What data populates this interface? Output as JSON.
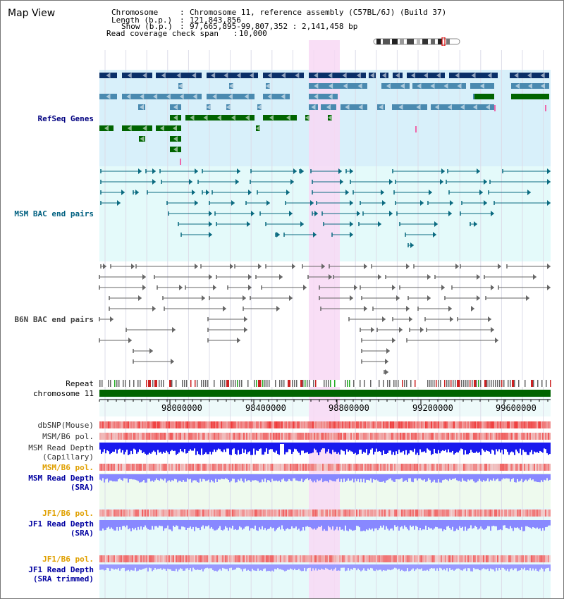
{
  "page": {
    "title": "Map View"
  },
  "info": {
    "chromosome_key": "Chromosome",
    "chromosome_value": "Chromosome 11, reference assembly (C57BL/6J) (Build 37)",
    "length_key": "Length (b.p.)",
    "length_value": "121,843,856",
    "show_key": "Show (b.p.)",
    "show_value": "97,665,895-99,807,352 : 2,141,458 bp",
    "span_key": "Read coverage check span",
    "span_value": "10,000"
  },
  "tracks": {
    "refseq": "RefSeq Genes",
    "msm_bac": "MSM BAC end pairs",
    "b6n_bac": "B6N BAC end pairs",
    "repeat": "Repeat",
    "chromosome": "chromosome 11",
    "dbsnp": "dbSNP(Mouse)",
    "msm_b6_pol_cap": "MSM/B6 pol.",
    "msm_depth_cap_1": "MSM Read Depth",
    "msm_depth_cap_2": "(Capillary)",
    "msm_b6_pol_sra": "MSM/B6 pol.",
    "msm_depth_sra_1": "MSM Read Depth",
    "msm_depth_sra_2": "(SRA)",
    "jf1_b6_pol": "JF1/B6 pol.",
    "jf1_depth_1": "JF1 Read Depth",
    "jf1_depth_2": "(SRA)",
    "jf1_b6_pol_trim": "JF1/B6 pol.",
    "jf1_depth_trim_1": "JF1 Read Depth",
    "jf1_depth_trim_2": "(SRA trimmed)"
  },
  "axis": {
    "ticks": [
      "98000000",
      "98400000",
      "98800000",
      "99200000",
      "99600000"
    ]
  },
  "colors": {
    "highlight": "#f8d8f4",
    "refseq_bg": "#d8f0fa",
    "bac_bg": "#e4fafa",
    "navy": "#0a2f68",
    "steel": "#4a8ab0",
    "green": "#006400",
    "teal_line": "#0a6a80",
    "gray_line": "#666666",
    "depth_msm": "#1a1aee",
    "depth_light": "#8888ff",
    "snp_red": "#e84040"
  }
}
